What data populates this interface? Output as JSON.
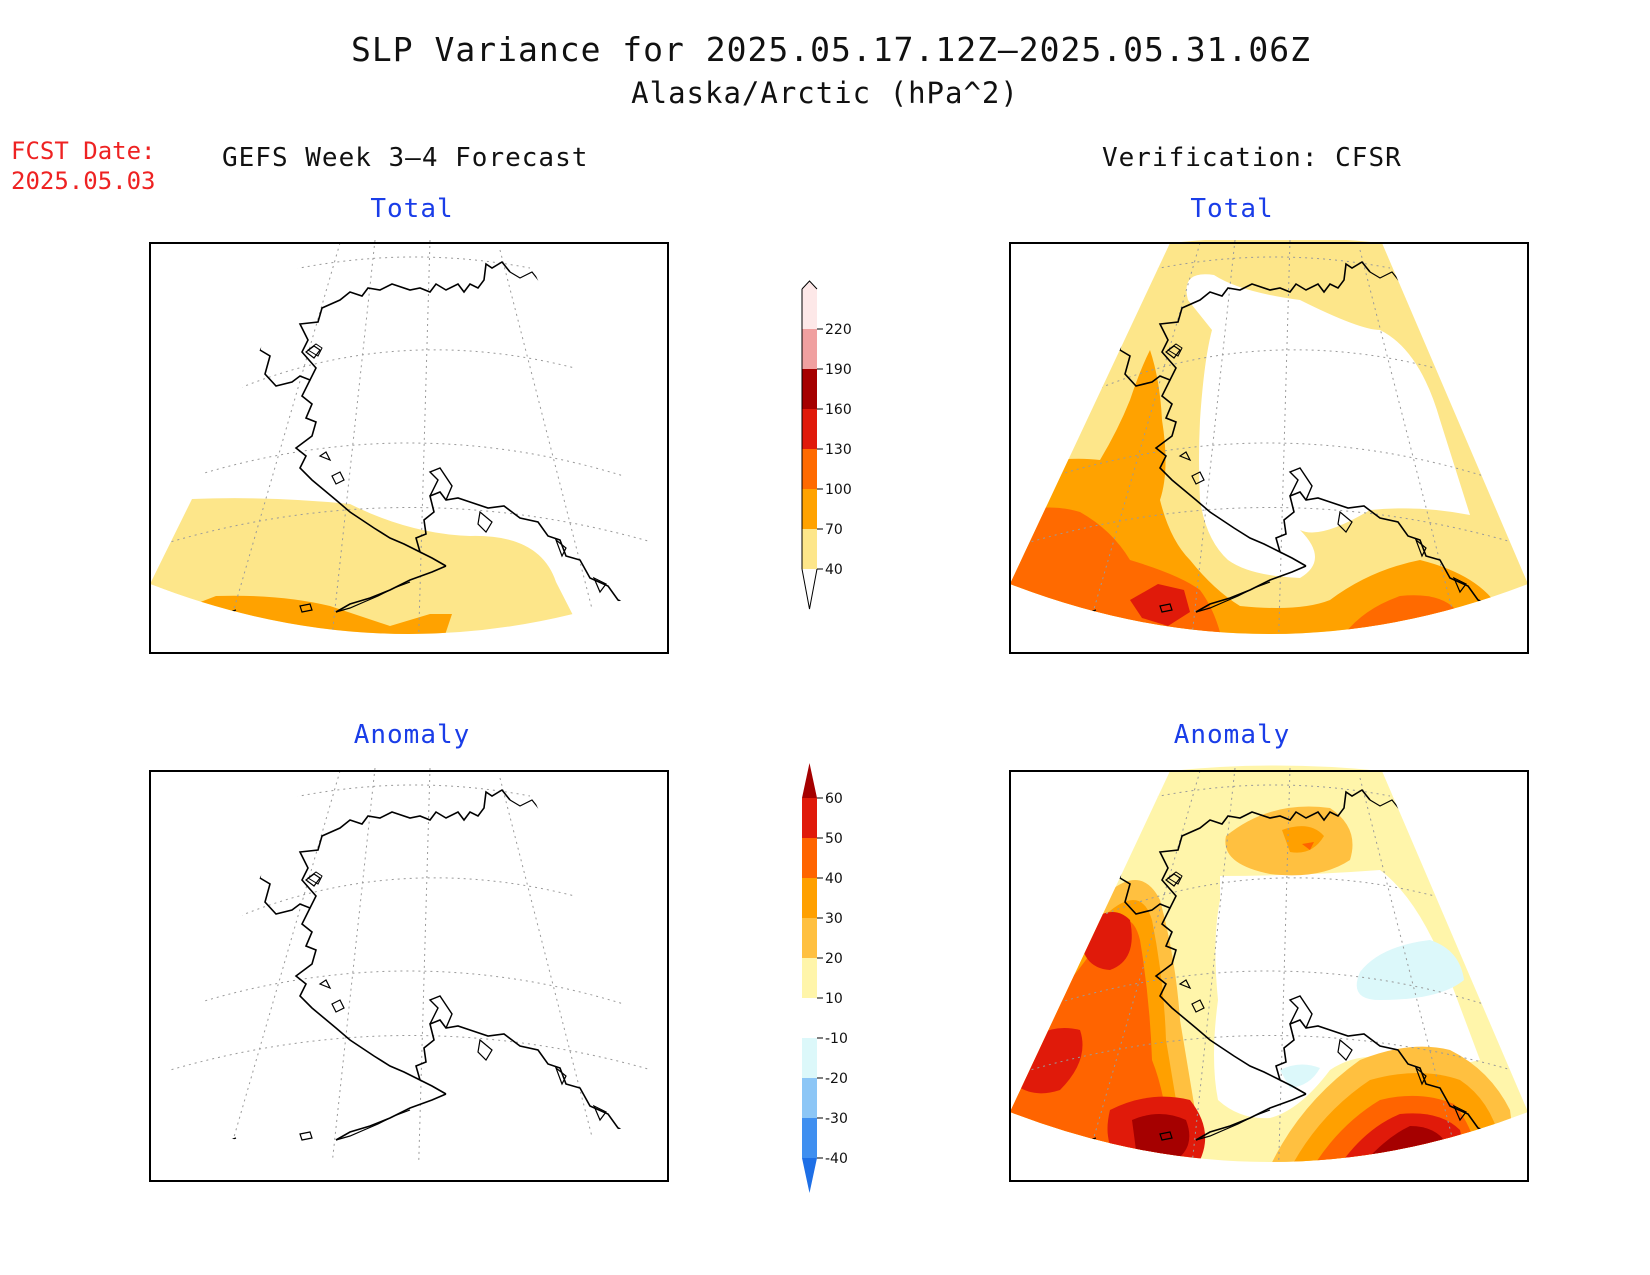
{
  "title": "SLP Variance for 2025.05.17.12Z–2025.05.31.06Z",
  "subtitle": "Alaska/Arctic (hPa^2)",
  "fcst_date_label": "FCST Date:",
  "fcst_date_value": "2025.05.03",
  "left_column_heading": "GEFS Week 3–4 Forecast",
  "right_column_heading": "Verification: CFSR",
  "panels": {
    "forecast_total": {
      "title": "Total"
    },
    "verification_total": {
      "title": "Total"
    },
    "forecast_anomaly": {
      "title": "Anomaly"
    },
    "verification_anomaly": {
      "title": "Anomaly"
    }
  },
  "colorbars": {
    "total": {
      "labels": [
        "40",
        "70",
        "100",
        "130",
        "160",
        "190",
        "220"
      ],
      "colors": [
        "#fde68a",
        "#ffa200",
        "#ff6a00",
        "#e01a0a",
        "#a50000",
        "#f0a0a0",
        "#fde8e8"
      ]
    },
    "anomaly": {
      "labels": [
        "-40",
        "-30",
        "-20",
        "-10",
        "10",
        "20",
        "30",
        "40",
        "50",
        "60"
      ],
      "colors": [
        "#1e6fe6",
        "#3f8ff0",
        "#8cc6f6",
        "#dcf8fa",
        "#ffffff",
        "#fff5aa",
        "#ffc040",
        "#ffa000",
        "#ff6400",
        "#e01a0a",
        "#a50000"
      ]
    }
  },
  "colors": {
    "title_text": "#111111",
    "fcst_date": "#ee2222",
    "panel_title": "#1a3de8"
  }
}
